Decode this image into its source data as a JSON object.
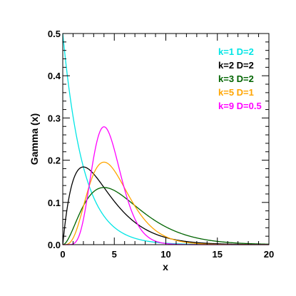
{
  "chart_data": {
    "type": "line",
    "title": "",
    "xlabel": "x",
    "ylabel": "Gamma (x)",
    "xlim": [
      0,
      20
    ],
    "ylim": [
      0,
      0.5
    ],
    "grid": false,
    "legend_position": "top-right",
    "x_ticks": [
      "0",
      "5",
      "10",
      "15",
      "20"
    ],
    "y_ticks": [
      "0.0",
      "0.1",
      "0.2",
      "0.3",
      "0.4",
      "0.5"
    ],
    "series": [
      {
        "name": "k=1 D=2",
        "k": 1,
        "theta": 2,
        "color": "#00e5e5"
      },
      {
        "name": "k=2 D=2",
        "k": 2,
        "theta": 2,
        "color": "#000000"
      },
      {
        "name": "k=3 D=2",
        "k": 3,
        "theta": 2,
        "color": "#006400"
      },
      {
        "name": "k=5 D=1",
        "k": 5,
        "theta": 1,
        "color": "#ffa500"
      },
      {
        "name": "k=9 D=0.5",
        "k": 9,
        "theta": 0.5,
        "color": "#ff00ff"
      }
    ]
  }
}
